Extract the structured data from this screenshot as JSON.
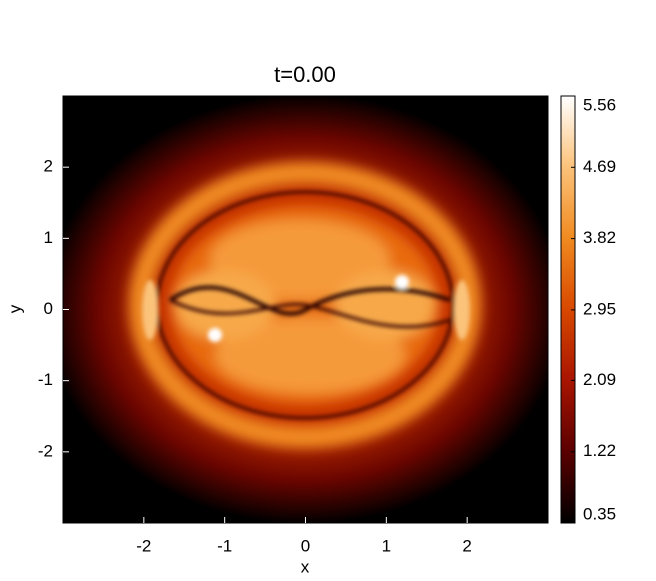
{
  "chart_data": {
    "type": "heatmap",
    "title": "t=0.00",
    "xlabel": "x",
    "ylabel": "y",
    "xlim": [
      -3,
      3
    ],
    "ylim": [
      -3,
      3
    ],
    "xticks": [
      -2,
      -1,
      0,
      1,
      2
    ],
    "yticks": [
      -2,
      -1,
      0,
      1,
      2
    ],
    "clim": [
      0.35,
      5.56
    ],
    "cticks": [
      0.35,
      1.22,
      2.09,
      2.95,
      3.82,
      4.69,
      5.56
    ],
    "colors": [
      "#000000",
      "#5a0000",
      "#a81400",
      "#d84800",
      "#f08a20",
      "#fbc27a",
      "#ffffff"
    ]
  }
}
